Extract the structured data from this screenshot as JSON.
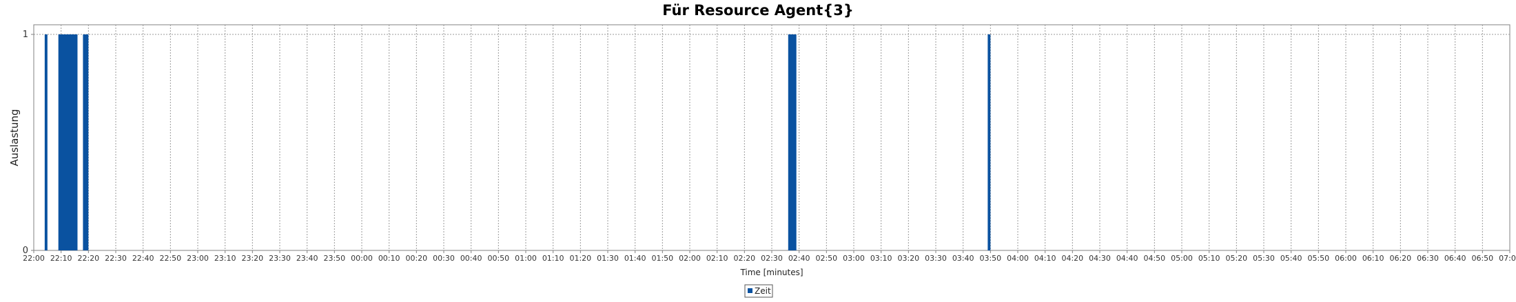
{
  "chart_data": {
    "type": "bar",
    "title": "Für Resource Agent{3}",
    "xlabel": "Time [minutes]",
    "ylabel": "Auslastung",
    "ylim": [
      0,
      1
    ],
    "yticks": [
      "0",
      "1"
    ],
    "xlim": [
      "22:00",
      "07:00"
    ],
    "xticks": [
      "22:00",
      "22:10",
      "22:20",
      "22:30",
      "22:40",
      "22:50",
      "23:00",
      "23:10",
      "23:20",
      "23:30",
      "23:40",
      "23:50",
      "00:00",
      "00:10",
      "00:20",
      "00:30",
      "00:40",
      "00:50",
      "01:00",
      "01:10",
      "01:20",
      "01:30",
      "01:40",
      "01:50",
      "02:00",
      "02:10",
      "02:20",
      "02:30",
      "02:40",
      "02:50",
      "03:00",
      "03:10",
      "03:20",
      "03:30",
      "03:40",
      "03:50",
      "04:00",
      "04:10",
      "04:20",
      "04:30",
      "04:40",
      "04:50",
      "05:00",
      "05:10",
      "05:20",
      "05:30",
      "05:40",
      "05:50",
      "06:00",
      "06:10",
      "06:20",
      "06:30",
      "06:40",
      "06:50",
      "07:00"
    ],
    "grid": true,
    "legend_position": "bottom-center",
    "color": "#0a52a0",
    "series": [
      {
        "name": "Zeit",
        "bars": [
          {
            "start": "22:04",
            "end": "22:05",
            "value": 1
          },
          {
            "start": "22:09",
            "end": "22:16",
            "value": 1
          },
          {
            "start": "22:18",
            "end": "22:20",
            "value": 1
          },
          {
            "start": "02:36",
            "end": "02:39",
            "value": 1
          },
          {
            "start": "03:49",
            "end": "03:50",
            "value": 1
          }
        ]
      }
    ]
  }
}
